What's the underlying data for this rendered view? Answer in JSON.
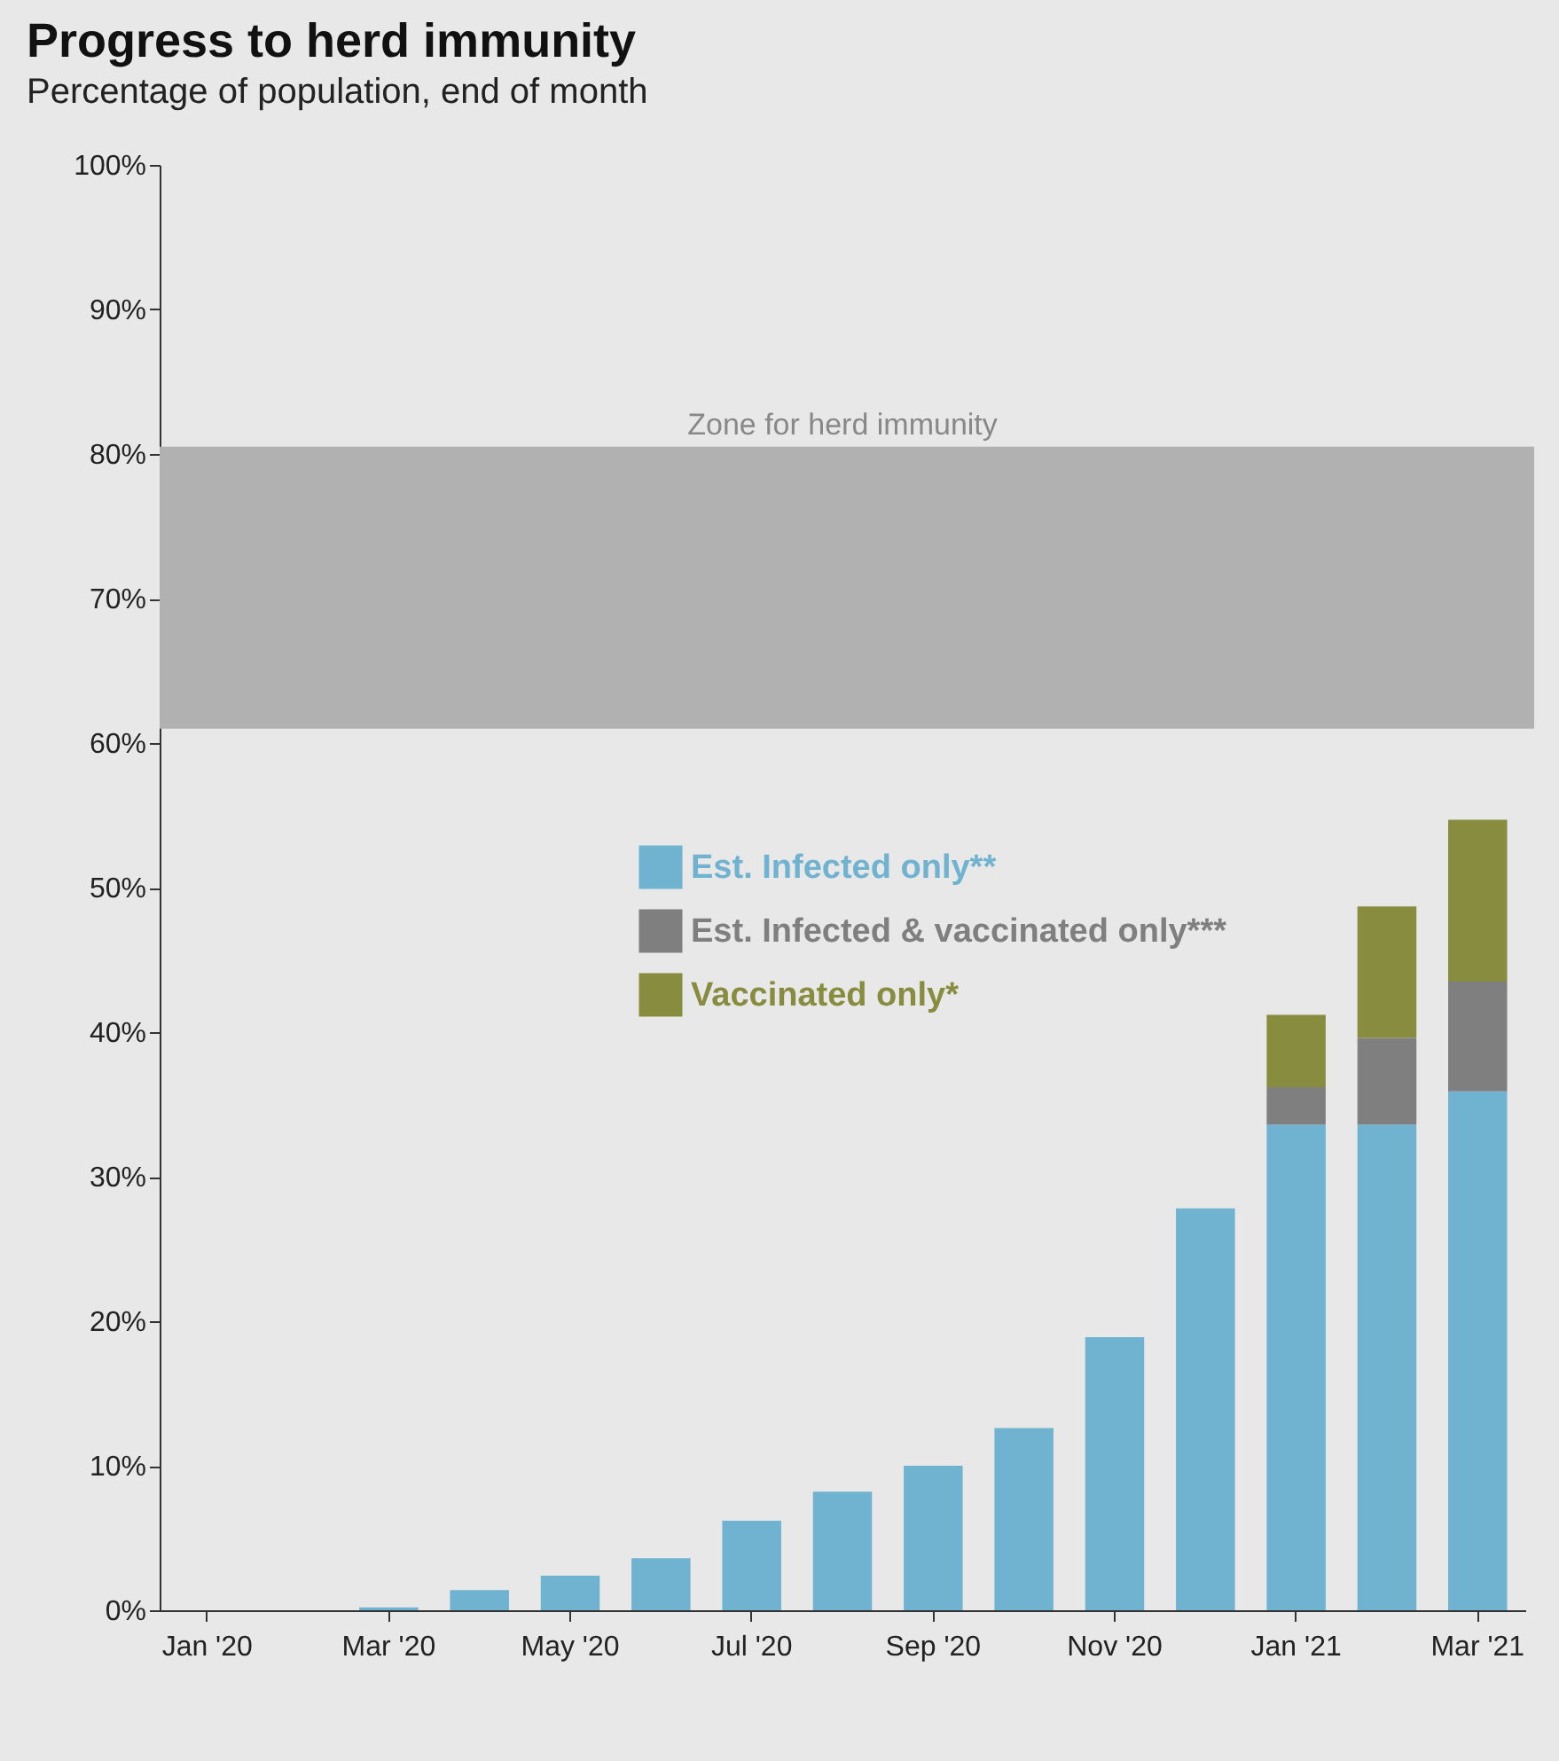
{
  "chart_data": {
    "type": "bar",
    "title": "Progress to herd immunity",
    "subtitle": "Percentage of population, end of month",
    "categories": [
      "Jan '20",
      null,
      "Mar '20",
      null,
      "May '20",
      null,
      "Jul '20",
      null,
      "Sep '20",
      null,
      "Nov '20",
      null,
      "Jan '21",
      null,
      "Mar '21"
    ],
    "stacked": true,
    "series": [
      {
        "name": "Est. Infected only**",
        "color": "#6fb3d0",
        "values": [
          0,
          0,
          0.2,
          1.4,
          2.4,
          3.6,
          6.2,
          8.2,
          10.0,
          12.6,
          18.9,
          27.8,
          33.6,
          33.6,
          35.9
        ]
      },
      {
        "name": "Est. Infected & vaccinated only***",
        "color": "#7f7f7f",
        "values": [
          null,
          null,
          null,
          null,
          null,
          null,
          null,
          null,
          null,
          null,
          null,
          null,
          2.6,
          6.0,
          7.6
        ]
      },
      {
        "name": "Vaccinated only*",
        "color": "#878c3f",
        "values": [
          null,
          null,
          null,
          null,
          null,
          null,
          null,
          null,
          null,
          null,
          null,
          null,
          5.0,
          9.1,
          11.2
        ]
      }
    ],
    "ylim": [
      0,
      100
    ],
    "yticks": [
      {
        "value": 0,
        "label": "0%"
      },
      {
        "value": 10,
        "label": "10%"
      },
      {
        "value": 20,
        "label": "20%"
      },
      {
        "value": 30,
        "label": "30%"
      },
      {
        "value": 40,
        "label": "40%"
      },
      {
        "value": 50,
        "label": "50%"
      },
      {
        "value": 60,
        "label": "60%"
      },
      {
        "value": 70,
        "label": "70%"
      },
      {
        "value": 80,
        "label": "80%"
      },
      {
        "value": 90,
        "label": "90%"
      },
      {
        "value": 100,
        "label": "100%"
      }
    ],
    "bands": [
      {
        "axis": "y",
        "from": 61,
        "to": 80.5,
        "label": "Zone for herd immunity",
        "color": "#b1b1b1"
      }
    ],
    "legend": "center",
    "grid": false
  }
}
